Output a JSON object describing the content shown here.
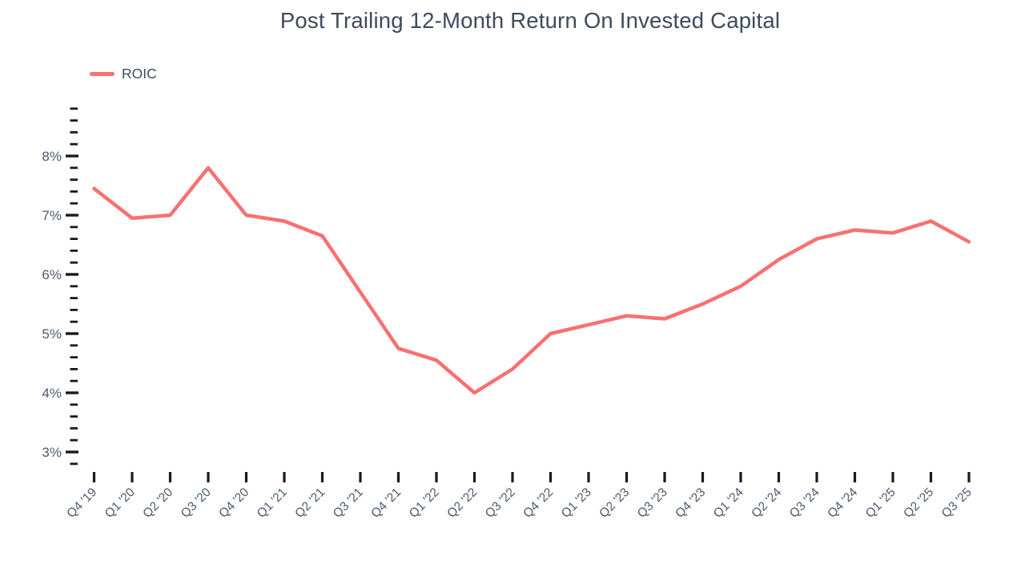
{
  "chart": {
    "title": "Post Trailing 12-Month Return On Invested Capital",
    "legend": [
      {
        "label": "ROIC",
        "color": "#FA7070"
      }
    ]
  },
  "chart_data": {
    "type": "line",
    "title": "Post Trailing 12-Month Return On Invested Capital",
    "categories": [
      "Q4 '19",
      "Q1 '20",
      "Q2 '20",
      "Q3 '20",
      "Q4 '20",
      "Q1 '21",
      "Q2 '21",
      "Q3 '21",
      "Q4 '21",
      "Q1 '22",
      "Q2 '22",
      "Q3 '22",
      "Q4 '22",
      "Q1 '23",
      "Q2 '23",
      "Q3 '23",
      "Q4 '23",
      "Q1 '24",
      "Q2 '24",
      "Q3 '24",
      "Q4 '24",
      "Q1 '25",
      "Q2 '25",
      "Q3 '25"
    ],
    "series": [
      {
        "name": "ROIC",
        "color": "#FA7070",
        "values": [
          7.45,
          6.95,
          7.0,
          7.8,
          7.0,
          6.9,
          6.65,
          5.7,
          4.75,
          4.55,
          4.0,
          4.4,
          5.0,
          5.15,
          5.3,
          5.25,
          5.5,
          5.8,
          6.25,
          6.6,
          6.75,
          6.7,
          6.9,
          6.55
        ]
      }
    ],
    "xlabel": "",
    "ylabel": "",
    "y_axis": {
      "unit": "%",
      "range": [
        2.8,
        8.8
      ],
      "major_ticks": [
        3,
        4,
        5,
        6,
        7,
        8
      ],
      "major_tick_labels": [
        "3%",
        "4%",
        "5%",
        "6%",
        "7%",
        "8%"
      ],
      "minor_step": 0.2
    },
    "legend_position": "top-left",
    "grid": false
  },
  "colors": {
    "line": "#FA7070",
    "title_text": "#3D4A5C",
    "axis_text": "#4C596C",
    "tick": "#1A1A1A",
    "background": "#FFFFFF"
  }
}
